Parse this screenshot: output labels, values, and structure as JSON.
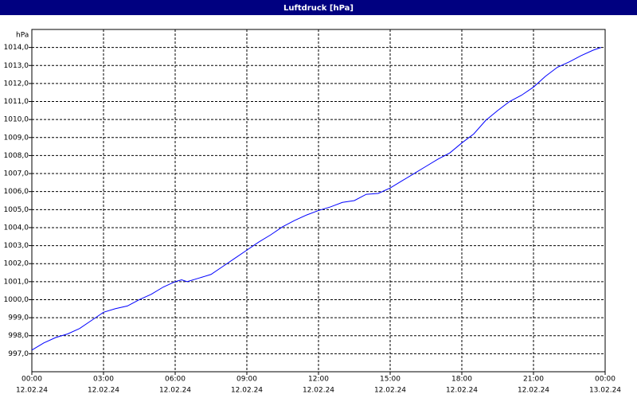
{
  "chart_data": {
    "type": "line",
    "title": "Luftdruck [hPa]",
    "y_label": "hPa",
    "x": [
      0,
      0.5,
      1,
      1.5,
      2,
      2.5,
      3,
      3.5,
      4,
      4.5,
      5,
      5.5,
      6,
      6.27,
      6.5,
      7,
      7.5,
      8,
      8.5,
      9,
      9.5,
      10,
      10.5,
      11,
      11.5,
      12,
      12.5,
      13,
      13.5,
      14,
      14.5,
      15,
      15.5,
      16,
      16.5,
      17,
      17.5,
      18,
      18.5,
      19,
      19.5,
      20,
      20.5,
      21,
      21.5,
      22,
      22.5,
      23,
      23.5,
      23.83
    ],
    "series": [
      {
        "name": "Luftdruck",
        "color": "#0000ff",
        "values": [
          997.2,
          997.6,
          997.9,
          998.1,
          998.4,
          998.85,
          999.3,
          999.5,
          999.65,
          1000.0,
          1000.3,
          1000.7,
          1001.0,
          1001.1,
          1001.0,
          1001.2,
          1001.4,
          1001.85,
          1002.3,
          1002.75,
          1003.2,
          1003.6,
          1004.05,
          1004.4,
          1004.7,
          1004.95,
          1005.15,
          1005.4,
          1005.5,
          1005.85,
          1005.9,
          1006.2,
          1006.6,
          1007.0,
          1007.4,
          1007.8,
          1008.15,
          1008.7,
          1009.2,
          1009.95,
          1010.5,
          1011.0,
          1011.35,
          1011.8,
          1012.4,
          1012.9,
          1013.2,
          1013.55,
          1013.85,
          1014.0
        ]
      }
    ],
    "xlim": [
      0,
      24
    ],
    "xticks": [
      {
        "value": 0,
        "label": "00:00",
        "date": "12.02.24"
      },
      {
        "value": 3,
        "label": "03:00",
        "date": "12.02.24"
      },
      {
        "value": 6,
        "label": "06:00",
        "date": "12.02.24"
      },
      {
        "value": 9,
        "label": "09:00",
        "date": "12.02.24"
      },
      {
        "value": 12,
        "label": "12:00",
        "date": "12.02.24"
      },
      {
        "value": 15,
        "label": "15:00",
        "date": "12.02.24"
      },
      {
        "value": 18,
        "label": "18:00",
        "date": "12.02.24"
      },
      {
        "value": 21,
        "label": "21:00",
        "date": "12.02.24"
      },
      {
        "value": 24,
        "label": "00:00",
        "date": "13.02.24"
      }
    ],
    "ylim": [
      996,
      1015
    ],
    "yticks": [
      {
        "value": 997,
        "label": "997,0"
      },
      {
        "value": 998,
        "label": "998,0"
      },
      {
        "value": 999,
        "label": "999,0"
      },
      {
        "value": 1000,
        "label": "1000,0"
      },
      {
        "value": 1001,
        "label": "1001,0"
      },
      {
        "value": 1002,
        "label": "1002,0"
      },
      {
        "value": 1003,
        "label": "1003,0"
      },
      {
        "value": 1004,
        "label": "1004,0"
      },
      {
        "value": 1005,
        "label": "1005,0"
      },
      {
        "value": 1006,
        "label": "1006,0"
      },
      {
        "value": 1007,
        "label": "1007,0"
      },
      {
        "value": 1008,
        "label": "1008,0"
      },
      {
        "value": 1009,
        "label": "1009,0"
      },
      {
        "value": 1010,
        "label": "1010,0"
      },
      {
        "value": 1011,
        "label": "1011,0"
      },
      {
        "value": 1012,
        "label": "1012,0"
      },
      {
        "value": 1013,
        "label": "1013,0"
      },
      {
        "value": 1014,
        "label": "1014,0"
      }
    ],
    "grid": true
  }
}
